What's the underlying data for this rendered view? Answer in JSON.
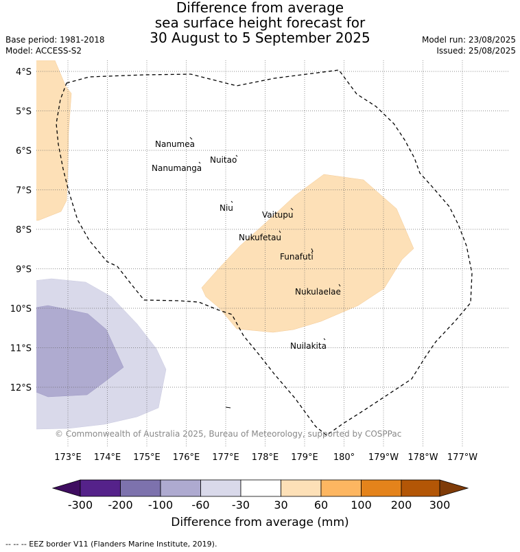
{
  "title": {
    "line1": "Difference from average",
    "line2": "sea surface height forecast for",
    "line3": "30 August to 5 September 2025"
  },
  "meta": {
    "base_period": "Base period: 1981-2018",
    "model": "Model: ACCESS-S2",
    "model_run": "Model run: 23/08/2025",
    "issued": "Issued: 25/08/2025"
  },
  "map": {
    "lat_labels": [
      "4°S",
      "5°S",
      "6°S",
      "7°S",
      "8°S",
      "9°S",
      "10°S",
      "11°S",
      "12°S"
    ],
    "lon_labels": [
      "173°E",
      "174°E",
      "175°E",
      "176°E",
      "177°E",
      "178°E",
      "179°E",
      "180°",
      "179°W",
      "178°W",
      "177°W"
    ],
    "places": [
      "Nanumea",
      "Nuitao",
      "Nanumanga",
      "Niu",
      "Vaitupu",
      "Nukufetau",
      "Funafuti",
      "Nukulaelae",
      "Nuilakita"
    ],
    "copyright": "© Commonwealth of Australia 2025, Bureau of Meteorology, supported by COSPPac",
    "colors": {
      "neg_300": "#3f0d60",
      "neg_200": "#55228a",
      "neg_100": "#7d72ad",
      "neg_60": "#aeaad0",
      "neg_30": "#d9d9ea",
      "neutral": "#ffffff",
      "pos_30": "#fde0b7",
      "pos_60": "#fdb661",
      "pos_100": "#e4831b",
      "pos_200": "#b35606",
      "pos_300": "#7f3b08"
    }
  },
  "colorbar": {
    "ticks": [
      "-300",
      "-200",
      "-100",
      "-60",
      "-30",
      "30",
      "60",
      "100",
      "200",
      "300"
    ],
    "label": "Difference from average (mm)"
  },
  "footnote": "-- -- -- EEZ border V11 (Flanders Marine Institute, 2019)."
}
